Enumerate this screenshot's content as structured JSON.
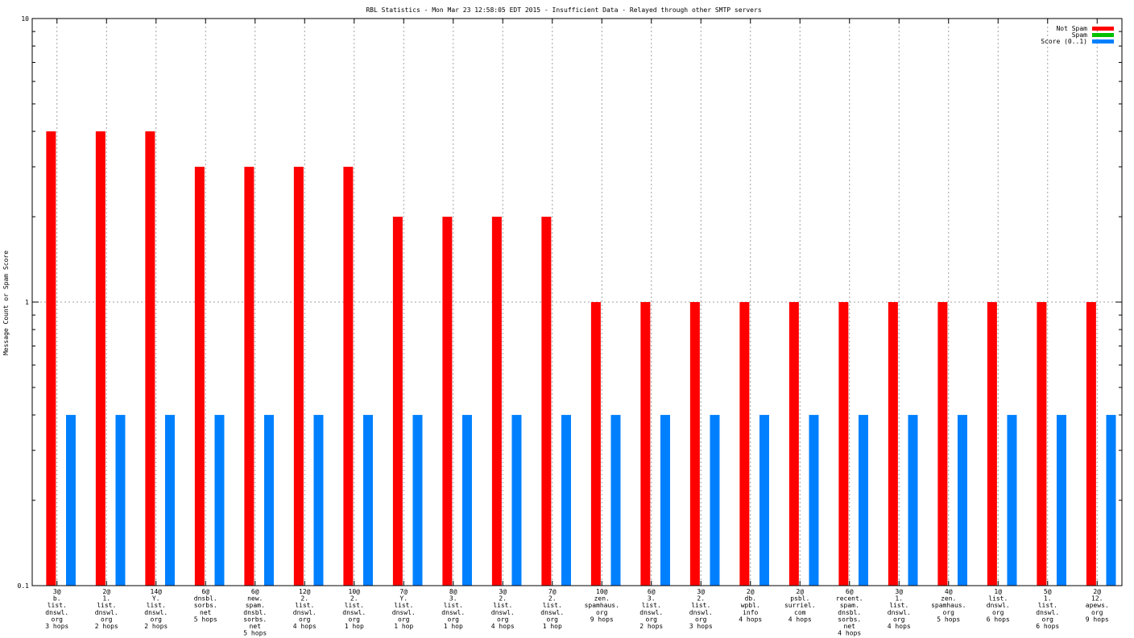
{
  "chart_data": {
    "type": "bar",
    "title": "RBL Statistics - Mon Mar 23 12:58:05 EDT 2015 - Insufficient Data - Relayed through other SMTP servers",
    "ylabel": "Message Count or Spam Score",
    "xlabel": "",
    "y_scale": "log",
    "ylim": [
      0.1,
      10
    ],
    "y_ticks": [
      "0.1",
      "1",
      "10"
    ],
    "grid": true,
    "legend_position": "top-right",
    "categories": [
      [
        "3@",
        "b.",
        "list.",
        "dnswl.",
        "org",
        "3 hops"
      ],
      [
        "2@",
        "1.",
        "list.",
        "dnswl.",
        "org",
        "2 hops"
      ],
      [
        "14@",
        "Y.",
        "list.",
        "dnswl.",
        "org",
        "2 hops"
      ],
      [
        "6@",
        "dnsbl.",
        "sorbs.",
        "net",
        "5 hops"
      ],
      [
        "6@",
        "new.",
        "spam.",
        "dnsbl.",
        "sorbs.",
        "net",
        "5 hops"
      ],
      [
        "12@",
        "2.",
        "list.",
        "dnswl.",
        "org",
        "4 hops"
      ],
      [
        "10@",
        "2.",
        "list.",
        "dnswl.",
        "org",
        "1 hop"
      ],
      [
        "7@",
        "Y.",
        "list.",
        "dnswl.",
        "org",
        "1 hop"
      ],
      [
        "8@",
        "3.",
        "list.",
        "dnswl.",
        "org",
        "1 hop"
      ],
      [
        "3@",
        "2.",
        "list.",
        "dnswl.",
        "org",
        "4 hops"
      ],
      [
        "7@",
        "2.",
        "list.",
        "dnswl.",
        "org",
        "1 hop"
      ],
      [
        "10@",
        "zen.",
        "spamhaus.",
        "org",
        "9 hops"
      ],
      [
        "6@",
        "3.",
        "list.",
        "dnswl.",
        "org",
        "2 hops"
      ],
      [
        "3@",
        "2.",
        "list.",
        "dnswl.",
        "org",
        "3 hops"
      ],
      [
        "2@",
        "db.",
        "wpbl.",
        "info",
        "4 hops"
      ],
      [
        "2@",
        "psbl.",
        "surriel.",
        "com",
        "4 hops"
      ],
      [
        "6@",
        "recent.",
        "spam.",
        "dnsbl.",
        "sorbs.",
        "net",
        "4 hops"
      ],
      [
        "3@",
        "1.",
        "list.",
        "dnswl.",
        "org",
        "4 hops"
      ],
      [
        "4@",
        "zen.",
        "spamhaus.",
        "org",
        "5 hops"
      ],
      [
        "1@",
        "list.",
        "dnswl.",
        "org",
        "6 hops"
      ],
      [
        "5@",
        "1.",
        "list.",
        "dnswl.",
        "org",
        "6 hops"
      ],
      [
        "2@",
        "12.",
        "apews.",
        "org",
        "9 hops"
      ]
    ],
    "series": [
      {
        "name": "Not Spam",
        "color": "#ff0000",
        "values": [
          4,
          4,
          4,
          3,
          3,
          3,
          3,
          2,
          2,
          2,
          2,
          1,
          1,
          1,
          1,
          1,
          1,
          1,
          1,
          1,
          1,
          1
        ]
      },
      {
        "name": "Spam",
        "color": "#00c000",
        "values": [
          0,
          0,
          0,
          0,
          0,
          0,
          0,
          0,
          0,
          0,
          0,
          0,
          0,
          0,
          0,
          0,
          0,
          0,
          0,
          0,
          0,
          0
        ]
      },
      {
        "name": "Score (0..1)",
        "color": "#0080ff",
        "values": [
          0.4,
          0.4,
          0.4,
          0.4,
          0.4,
          0.4,
          0.4,
          0.4,
          0.4,
          0.4,
          0.4,
          0.4,
          0.4,
          0.4,
          0.4,
          0.4,
          0.4,
          0.4,
          0.4,
          0.4,
          0.4,
          0.4
        ]
      }
    ]
  }
}
